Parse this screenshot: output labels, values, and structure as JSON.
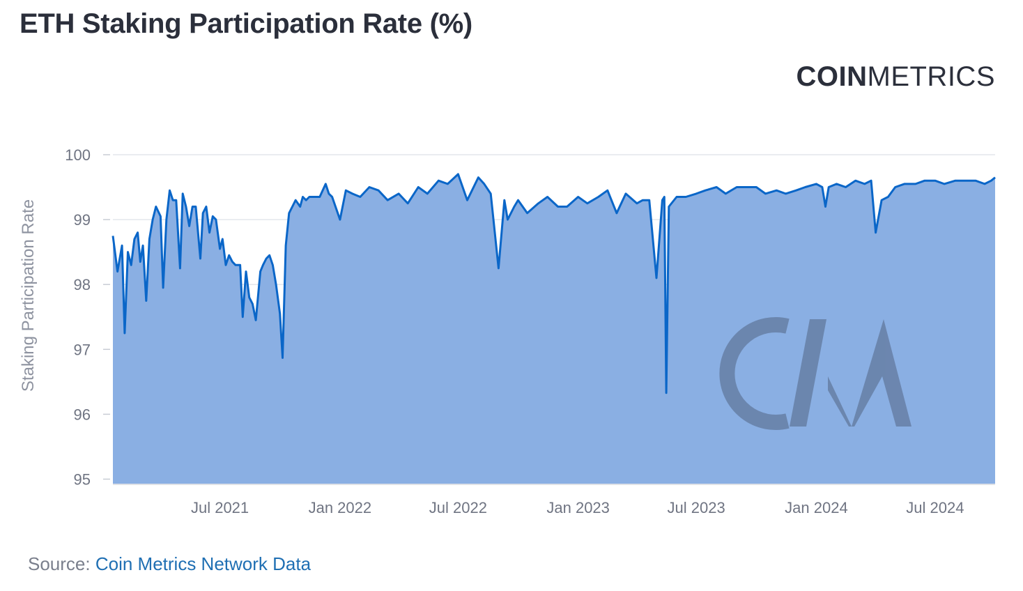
{
  "header": {
    "title": "ETH Staking Participation Rate (%)"
  },
  "brand": {
    "strong": "COIN",
    "light": "METRICS"
  },
  "watermark": {
    "icon": "coinmetrics-cm-watermark"
  },
  "footer": {
    "source_label": "Source:",
    "source_link": "Coin Metrics Network Data"
  },
  "colors": {
    "line": "#0a66c8",
    "area": "#8aafe3",
    "grid": "#e3e6ec",
    "tick": "#6f7482",
    "watermark": "#46556f"
  },
  "chart_data": {
    "type": "area",
    "title": "ETH Staking Participation Rate (%)",
    "xlabel": "",
    "ylabel": "Staking Participation Rate",
    "xlim": [
      "2021-01-18",
      "2024-10-01"
    ],
    "ylim": [
      94.93,
      100
    ],
    "y_ticks": [
      100,
      99,
      98,
      97,
      96,
      95
    ],
    "x_ticks": [
      {
        "date": "2021-07-01",
        "label": "Jul 2021"
      },
      {
        "date": "2022-01-01",
        "label": "Jan 2022"
      },
      {
        "date": "2022-07-01",
        "label": "Jul 2022"
      },
      {
        "date": "2023-01-01",
        "label": "Jan 2023"
      },
      {
        "date": "2023-07-01",
        "label": "Jul 2023"
      },
      {
        "date": "2024-01-01",
        "label": "Jan 2024"
      },
      {
        "date": "2024-07-01",
        "label": "Jul 2024"
      }
    ],
    "grid": true,
    "legend": "none",
    "series": [
      {
        "x": [
          "2021-01-18",
          "2021-01-25",
          "2021-02-01",
          "2021-02-05",
          "2021-02-10",
          "2021-02-15",
          "2021-02-20",
          "2021-02-25",
          "2021-03-01",
          "2021-03-05",
          "2021-03-10",
          "2021-03-15",
          "2021-03-20",
          "2021-03-25",
          "2021-04-01",
          "2021-04-05",
          "2021-04-10",
          "2021-04-15",
          "2021-04-20",
          "2021-04-25",
          "2021-05-01",
          "2021-05-05",
          "2021-05-10",
          "2021-05-15",
          "2021-05-20",
          "2021-05-25",
          "2021-06-01",
          "2021-06-05",
          "2021-06-10",
          "2021-06-15",
          "2021-06-20",
          "2021-06-25",
          "2021-07-01",
          "2021-07-05",
          "2021-07-10",
          "2021-07-15",
          "2021-07-20",
          "2021-07-25",
          "2021-08-01",
          "2021-08-05",
          "2021-08-10",
          "2021-08-15",
          "2021-08-20",
          "2021-08-25",
          "2021-09-01",
          "2021-09-05",
          "2021-09-10",
          "2021-09-15",
          "2021-09-20",
          "2021-09-25",
          "2021-10-01",
          "2021-10-05",
          "2021-10-10",
          "2021-10-15",
          "2021-10-20",
          "2021-10-25",
          "2021-11-01",
          "2021-11-05",
          "2021-11-10",
          "2021-11-15",
          "2021-11-20",
          "2021-12-01",
          "2021-12-10",
          "2021-12-15",
          "2021-12-20",
          "2022-01-01",
          "2022-01-10",
          "2022-01-20",
          "2022-02-01",
          "2022-02-15",
          "2022-03-01",
          "2022-03-15",
          "2022-04-01",
          "2022-04-15",
          "2022-05-01",
          "2022-05-15",
          "2022-06-01",
          "2022-06-15",
          "2022-07-01",
          "2022-07-15",
          "2022-08-01",
          "2022-08-10",
          "2022-08-20",
          "2022-09-01",
          "2022-09-10",
          "2022-09-15",
          "2022-09-25",
          "2022-10-01",
          "2022-10-15",
          "2022-11-01",
          "2022-11-15",
          "2022-12-01",
          "2022-12-10",
          "2022-12-15",
          "2023-01-01",
          "2023-01-15",
          "2023-02-01",
          "2023-02-15",
          "2023-03-01",
          "2023-03-15",
          "2023-04-01",
          "2023-04-10",
          "2023-04-20",
          "2023-05-01",
          "2023-05-10",
          "2023-05-13",
          "2023-05-16",
          "2023-05-20",
          "2023-06-01",
          "2023-06-15",
          "2023-07-01",
          "2023-07-15",
          "2023-08-01",
          "2023-08-15",
          "2023-09-01",
          "2023-09-15",
          "2023-10-01",
          "2023-10-15",
          "2023-11-01",
          "2023-11-15",
          "2023-12-01",
          "2023-12-15",
          "2024-01-01",
          "2024-01-10",
          "2024-01-15",
          "2024-01-20",
          "2024-02-01",
          "2024-02-15",
          "2024-03-01",
          "2024-03-15",
          "2024-03-25",
          "2024-04-01",
          "2024-04-10",
          "2024-04-20",
          "2024-05-01",
          "2024-05-15",
          "2024-06-01",
          "2024-06-15",
          "2024-07-01",
          "2024-07-15",
          "2024-08-01",
          "2024-08-15",
          "2024-09-01",
          "2024-09-15",
          "2024-09-25",
          "2024-10-01"
        ],
        "values": [
          98.75,
          98.2,
          98.6,
          97.25,
          98.5,
          98.3,
          98.7,
          98.8,
          98.35,
          98.6,
          97.75,
          98.7,
          99.0,
          99.2,
          99.05,
          97.95,
          99.0,
          99.45,
          99.3,
          99.3,
          98.25,
          99.4,
          99.2,
          98.9,
          99.2,
          99.2,
          98.4,
          99.1,
          99.2,
          98.8,
          99.05,
          99.0,
          98.55,
          98.7,
          98.3,
          98.45,
          98.35,
          98.3,
          98.3,
          97.5,
          98.2,
          97.8,
          97.7,
          97.45,
          98.2,
          98.3,
          98.4,
          98.45,
          98.3,
          98.0,
          97.55,
          96.87,
          98.6,
          99.1,
          99.2,
          99.3,
          99.2,
          99.35,
          99.3,
          99.35,
          99.35,
          99.35,
          99.55,
          99.4,
          99.35,
          99.0,
          99.45,
          99.4,
          99.35,
          99.5,
          99.45,
          99.3,
          99.4,
          99.25,
          99.5,
          99.4,
          99.6,
          99.55,
          99.7,
          99.3,
          99.65,
          99.55,
          99.4,
          98.25,
          99.3,
          99.0,
          99.2,
          99.3,
          99.1,
          99.25,
          99.35,
          99.2,
          99.2,
          99.2,
          99.35,
          99.25,
          99.35,
          99.45,
          99.1,
          99.4,
          99.25,
          99.3,
          99.3,
          98.1,
          99.3,
          99.35,
          96.33,
          99.2,
          99.35,
          99.35,
          99.4,
          99.45,
          99.5,
          99.4,
          99.5,
          99.5,
          99.5,
          99.4,
          99.45,
          99.4,
          99.45,
          99.5,
          99.55,
          99.5,
          99.2,
          99.5,
          99.55,
          99.5,
          99.6,
          99.55,
          99.6,
          98.8,
          99.3,
          99.35,
          99.5,
          99.55,
          99.55,
          99.6,
          99.6,
          99.55,
          99.6,
          99.6,
          99.6,
          99.55,
          99.6,
          99.65
        ]
      }
    ]
  }
}
